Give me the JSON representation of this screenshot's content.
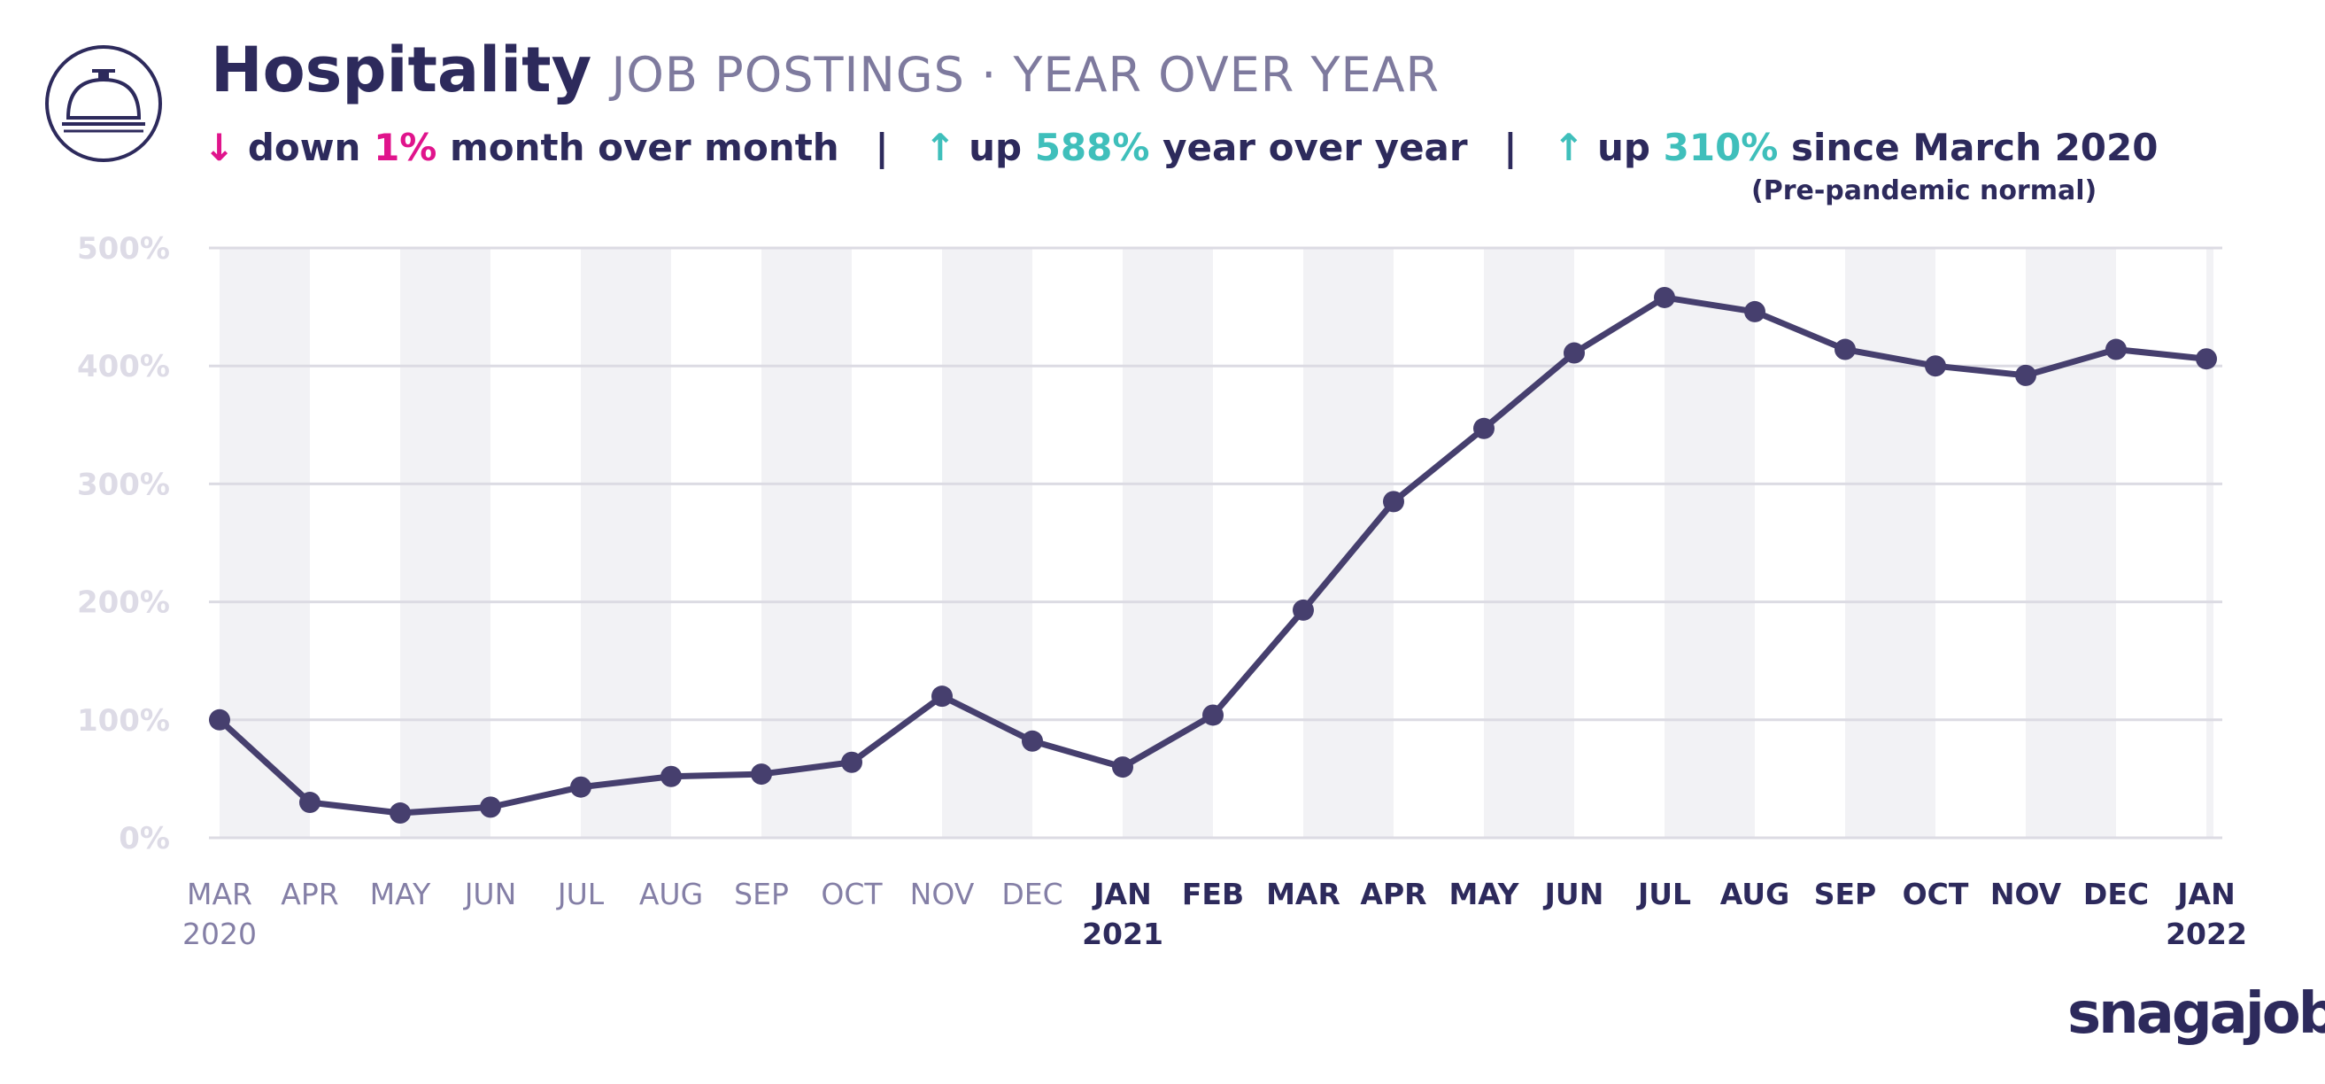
{
  "header": {
    "title": "Hospitality",
    "subtitle": "JOB POSTINGS",
    "subtitle_sep": "·",
    "subtitle_2": "YEAR OVER YEAR",
    "icon": "service-bell-icon"
  },
  "stats": {
    "mom_arrow": "↓",
    "mom_word": "down",
    "mom_value": "1%",
    "mom_label": "month over month",
    "yoy_arrow": "↑",
    "yoy_word": "up",
    "yoy_value": "588%",
    "yoy_label": "year over year",
    "since_arrow": "↑",
    "since_word": "up",
    "since_value": "310%",
    "since_label": "since March 2020",
    "since_note": "(Pre-pandemic normal)",
    "divider": "|"
  },
  "colors": {
    "line": "#463f6e",
    "down": "#e0148c",
    "up": "#3fbfbb",
    "band": "#f2f2f5",
    "grid": "#dcdbe3"
  },
  "brand": {
    "name": "snagajob"
  },
  "chart_data": {
    "type": "line",
    "title": "Hospitality JOB POSTINGS · YEAR OVER YEAR",
    "xlabel": "",
    "ylabel": "",
    "ylim": [
      0,
      500
    ],
    "yticks": [
      0,
      100,
      200,
      300,
      400,
      500
    ],
    "ytick_labels": [
      "0%",
      "100%",
      "200%",
      "300%",
      "400%",
      "500%"
    ],
    "grid": true,
    "categories": [
      "MAR",
      "APR",
      "MAY",
      "JUN",
      "JUL",
      "AUG",
      "SEP",
      "OCT",
      "NOV",
      "DEC",
      "JAN",
      "FEB",
      "MAR",
      "APR",
      "MAY",
      "JUN",
      "JUL",
      "AUG",
      "SEP",
      "OCT",
      "NOV",
      "DEC",
      "JAN"
    ],
    "year_labels": [
      {
        "index": 0,
        "label": "2020"
      },
      {
        "index": 10,
        "label": "2021"
      },
      {
        "index": 22,
        "label": "2022"
      }
    ],
    "dark_labels": [
      10,
      11,
      12,
      13,
      14,
      15,
      16,
      17,
      18,
      19,
      20,
      21,
      22
    ],
    "series": [
      {
        "name": "Hospitality job postings",
        "values": [
          100,
          30,
          21,
          26,
          43,
          52,
          54,
          64,
          120,
          82,
          60,
          104,
          193,
          285,
          347,
          411,
          458,
          446,
          414,
          400,
          392,
          414,
          406
        ]
      }
    ]
  }
}
